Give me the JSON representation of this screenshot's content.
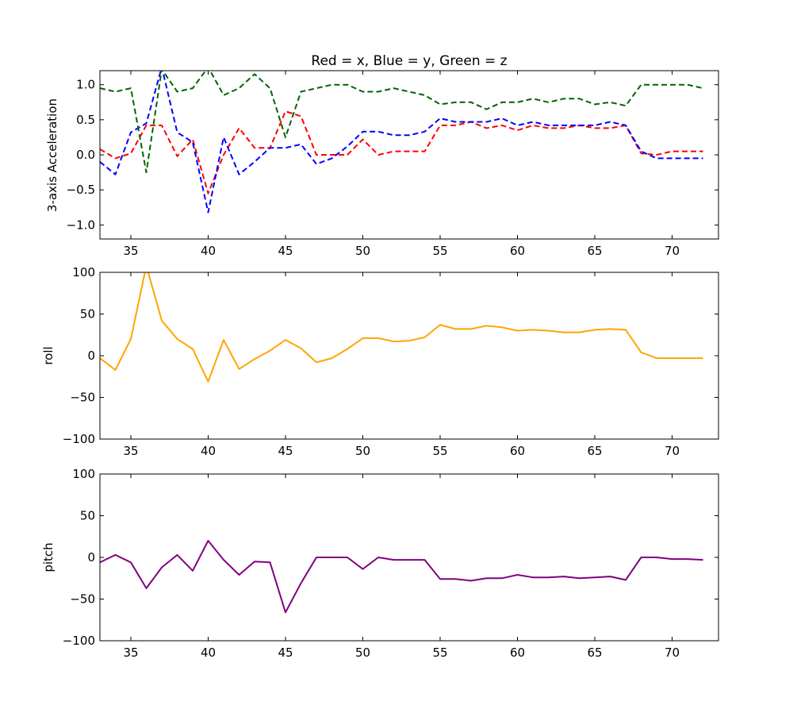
{
  "chart_data": [
    {
      "type": "line",
      "title": "Red = x, Blue = y, Green = z",
      "xlabel": "",
      "ylabel": "3-axis Acceleration",
      "xlim": [
        33,
        73
      ],
      "ylim": [
        -1.2,
        1.2
      ],
      "xticks": [
        35,
        40,
        45,
        50,
        55,
        60,
        65,
        70
      ],
      "yticks": [
        -1.0,
        -0.5,
        0.0,
        0.5,
        1.0
      ],
      "ytick_labels": [
        "−1.0",
        "−0.5",
        "0.0",
        "0.5",
        "1.0"
      ],
      "xtick_labels": [
        "35",
        "40",
        "45",
        "50",
        "55",
        "60",
        "65",
        "70"
      ],
      "grid": false,
      "x": [
        33,
        34,
        35,
        36,
        37,
        38,
        39,
        40,
        41,
        42,
        43,
        44,
        45,
        46,
        47,
        48,
        49,
        50,
        51,
        52,
        53,
        54,
        55,
        56,
        57,
        58,
        59,
        60,
        61,
        62,
        63,
        64,
        65,
        66,
        67,
        68,
        69,
        70,
        71,
        72
      ],
      "series": [
        {
          "color": "#ff0000",
          "dash": "dashed",
          "values": [
            0.08,
            -0.05,
            0.02,
            0.42,
            0.42,
            -0.02,
            0.22,
            -0.55,
            0.0,
            0.38,
            0.1,
            0.1,
            0.62,
            0.55,
            0.0,
            0.0,
            0.0,
            0.22,
            0.0,
            0.05,
            0.05,
            0.05,
            0.42,
            0.42,
            0.47,
            0.38,
            0.42,
            0.35,
            0.42,
            0.38,
            0.38,
            0.42,
            0.38,
            0.38,
            0.42,
            0.02,
            0.0,
            0.05,
            0.05,
            0.05
          ]
        },
        {
          "color": "#0000ff",
          "dash": "dashed",
          "values": [
            -0.1,
            -0.28,
            0.32,
            0.45,
            1.25,
            0.32,
            0.18,
            -0.82,
            0.25,
            -0.28,
            -0.1,
            0.1,
            0.1,
            0.15,
            -0.13,
            -0.05,
            0.12,
            0.33,
            0.33,
            0.28,
            0.28,
            0.33,
            0.52,
            0.47,
            0.47,
            0.47,
            0.52,
            0.42,
            0.47,
            0.42,
            0.42,
            0.42,
            0.42,
            0.47,
            0.42,
            0.05,
            -0.05,
            -0.05,
            -0.05,
            -0.05
          ]
        },
        {
          "color": "#006400",
          "dash": "dashed",
          "values": [
            0.95,
            0.9,
            0.95,
            -0.25,
            1.22,
            0.9,
            0.95,
            1.25,
            0.85,
            0.95,
            1.15,
            0.95,
            0.25,
            0.9,
            0.95,
            1.0,
            1.0,
            0.9,
            0.9,
            0.95,
            0.9,
            0.85,
            0.72,
            0.75,
            0.75,
            0.65,
            0.75,
            0.75,
            0.8,
            0.75,
            0.8,
            0.8,
            0.72,
            0.75,
            0.7,
            1.0,
            1.0,
            1.0,
            1.0,
            0.95
          ]
        }
      ]
    },
    {
      "type": "line",
      "title": "",
      "xlabel": "",
      "ylabel": "roll",
      "xlim": [
        33,
        73
      ],
      "ylim": [
        -100,
        100
      ],
      "xticks": [
        35,
        40,
        45,
        50,
        55,
        60,
        65,
        70
      ],
      "yticks": [
        -100,
        -50,
        0,
        50,
        100
      ],
      "ytick_labels": [
        "−100",
        "−50",
        "0",
        "50",
        "100"
      ],
      "xtick_labels": [
        "35",
        "40",
        "45",
        "50",
        "55",
        "60",
        "65",
        "70"
      ],
      "grid": false,
      "x": [
        33,
        34,
        35,
        36,
        37,
        38,
        39,
        40,
        41,
        42,
        43,
        44,
        45,
        46,
        47,
        48,
        49,
        50,
        51,
        52,
        53,
        54,
        55,
        56,
        57,
        58,
        59,
        60,
        61,
        62,
        63,
        64,
        65,
        66,
        67,
        68,
        69,
        70,
        71,
        72
      ],
      "series": [
        {
          "color": "#ffa500",
          "dash": "solid",
          "values": [
            -3,
            -17,
            20,
            108,
            42,
            20,
            8,
            -31,
            19,
            -16,
            -4,
            6,
            19,
            9,
            -8,
            -3,
            8,
            21,
            21,
            17,
            18,
            22,
            37,
            32,
            32,
            36,
            34,
            30,
            31,
            30,
            28,
            28,
            31,
            32,
            31,
            4,
            -3,
            -3,
            -3,
            -3
          ]
        }
      ]
    },
    {
      "type": "line",
      "title": "",
      "xlabel": "",
      "ylabel": "pitch",
      "xlim": [
        33,
        73
      ],
      "ylim": [
        -100,
        100
      ],
      "xticks": [
        35,
        40,
        45,
        50,
        55,
        60,
        65,
        70
      ],
      "yticks": [
        -100,
        -50,
        0,
        50,
        100
      ],
      "ytick_labels": [
        "−100",
        "−50",
        "0",
        "50",
        "100"
      ],
      "xtick_labels": [
        "35",
        "40",
        "45",
        "50",
        "55",
        "60",
        "65",
        "70"
      ],
      "grid": false,
      "x": [
        33,
        34,
        35,
        36,
        37,
        38,
        39,
        40,
        41,
        42,
        43,
        44,
        45,
        46,
        47,
        48,
        49,
        50,
        51,
        52,
        53,
        54,
        55,
        56,
        57,
        58,
        59,
        60,
        61,
        62,
        63,
        64,
        65,
        66,
        67,
        68,
        69,
        70,
        71,
        72
      ],
      "series": [
        {
          "color": "#800080",
          "dash": "solid",
          "values": [
            -6,
            3,
            -6,
            -37,
            -12,
            3,
            -16,
            20,
            -3,
            -21,
            -5,
            -6,
            -66,
            -31,
            0,
            0,
            0,
            -14,
            0,
            -3,
            -3,
            -3,
            -26,
            -26,
            -28,
            -25,
            -25,
            -21,
            -24,
            -24,
            -23,
            -25,
            -24,
            -23,
            -27,
            0,
            0,
            -2,
            -2,
            -3
          ]
        }
      ]
    }
  ]
}
